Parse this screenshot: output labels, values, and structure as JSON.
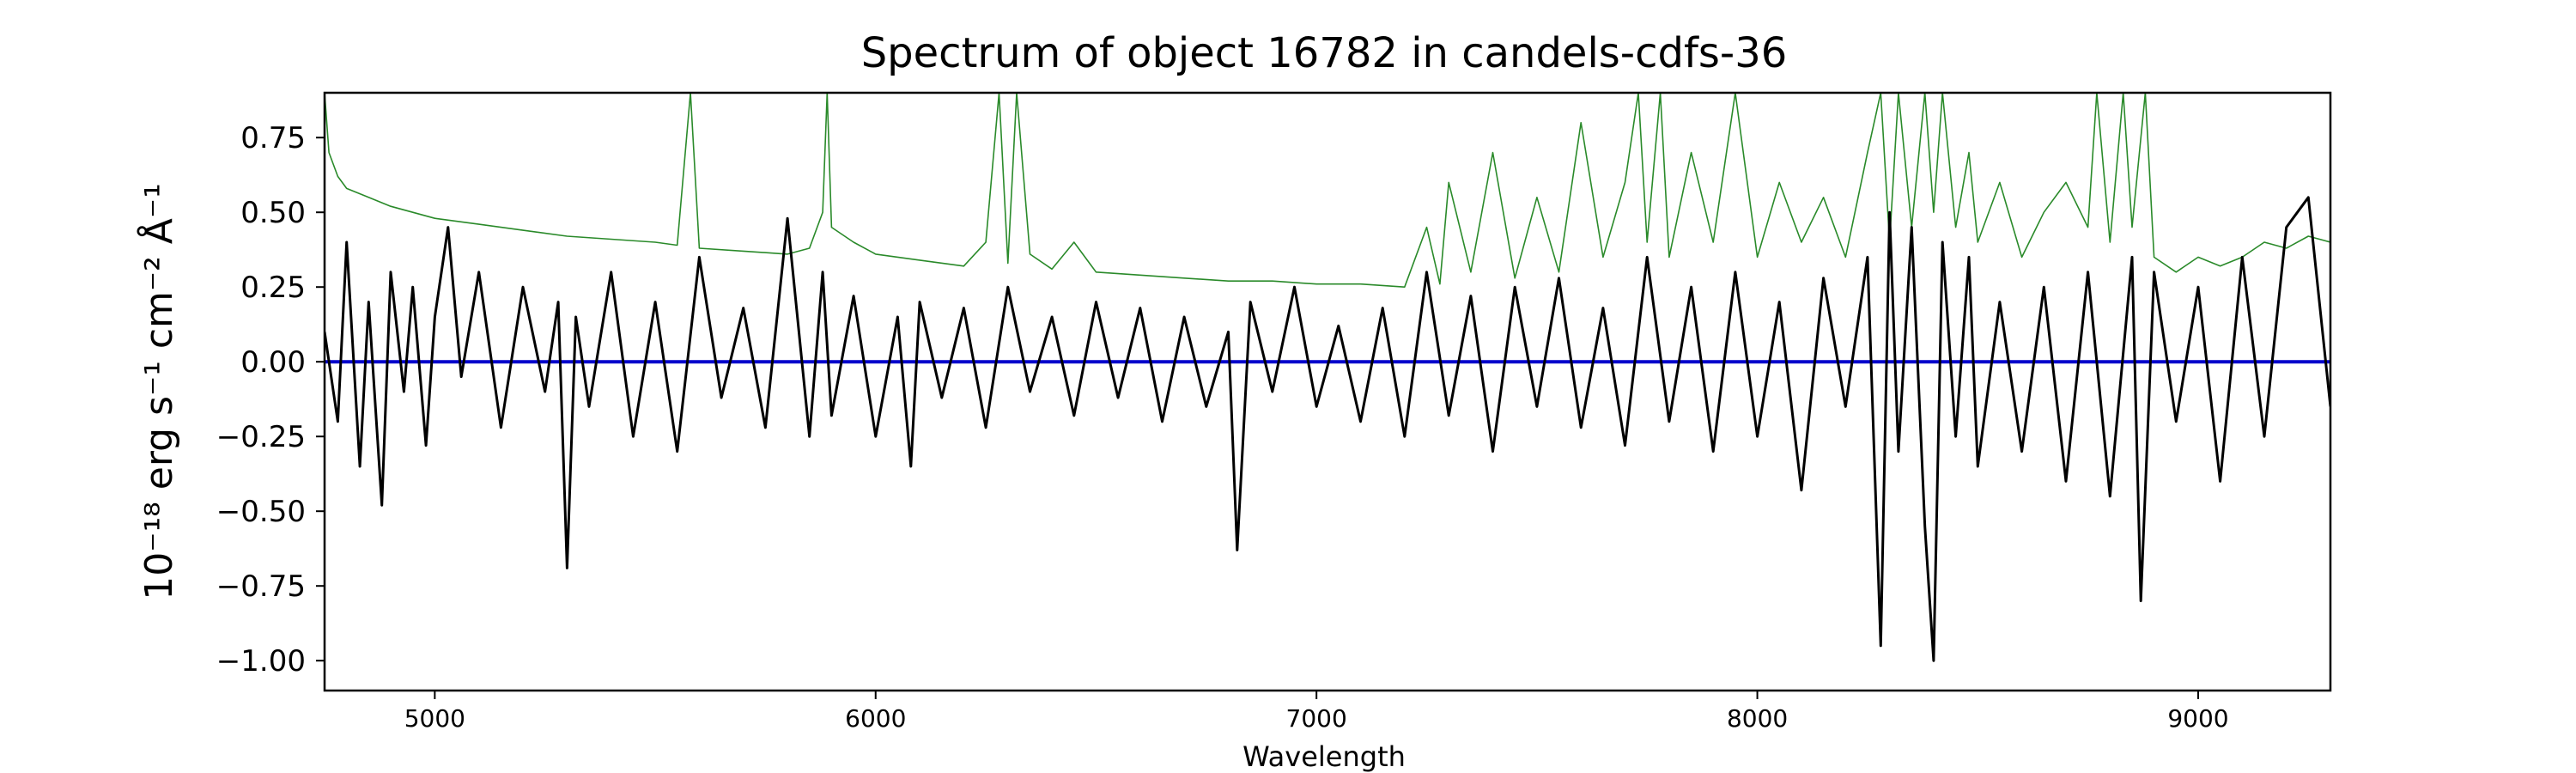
{
  "chart_data": {
    "type": "line",
    "title": "Spectrum of object 16782 in candels-cdfs-36",
    "xlabel": "Wavelength",
    "ylabel": "10⁻¹⁸ erg s⁻¹ cm⁻² Å⁻¹",
    "xlim": [
      4750,
      9300
    ],
    "ylim": [
      -1.1,
      0.9
    ],
    "xticks": [
      5000,
      6000,
      7000,
      8000,
      9000
    ],
    "xtick_labels": [
      "5000",
      "6000",
      "7000",
      "8000",
      "9000"
    ],
    "yticks": [
      -1.0,
      -0.75,
      -0.5,
      -0.25,
      0.0,
      0.25,
      0.5,
      0.75
    ],
    "ytick_labels": [
      "−1.00",
      "−0.75",
      "−0.50",
      "−0.25",
      "0.00",
      "0.25",
      "0.50",
      "0.75"
    ],
    "grid": false,
    "colors": {
      "flux": "#000000",
      "noise": "#2a8a2a",
      "model": "#0000cc"
    },
    "series": [
      {
        "key": "flux",
        "x": [
          4750,
          4780,
          4800,
          4830,
          4850,
          4880,
          4900,
          4930,
          4950,
          4980,
          5000,
          5030,
          5060,
          5100,
          5150,
          5200,
          5250,
          5280,
          5300,
          5320,
          5350,
          5400,
          5450,
          5500,
          5550,
          5600,
          5650,
          5700,
          5750,
          5800,
          5850,
          5880,
          5900,
          5950,
          6000,
          6050,
          6080,
          6100,
          6150,
          6200,
          6250,
          6300,
          6350,
          6400,
          6450,
          6500,
          6550,
          6600,
          6650,
          6700,
          6750,
          6800,
          6820,
          6850,
          6900,
          6950,
          7000,
          7050,
          7100,
          7150,
          7200,
          7250,
          7300,
          7350,
          7400,
          7450,
          7500,
          7550,
          7600,
          7650,
          7700,
          7750,
          7800,
          7850,
          7900,
          7950,
          8000,
          8050,
          8100,
          8150,
          8200,
          8250,
          8280,
          8300,
          8320,
          8350,
          8380,
          8400,
          8420,
          8450,
          8480,
          8500,
          8550,
          8600,
          8650,
          8700,
          8750,
          8800,
          8850,
          8870,
          8900,
          8950,
          9000,
          9050,
          9100,
          9150,
          9200,
          9250,
          9300
        ],
        "y": [
          0.1,
          -0.2,
          0.4,
          -0.35,
          0.2,
          -0.48,
          0.3,
          -0.1,
          0.25,
          -0.28,
          0.15,
          0.45,
          -0.05,
          0.3,
          -0.22,
          0.25,
          -0.1,
          0.2,
          -0.69,
          0.15,
          -0.15,
          0.3,
          -0.25,
          0.2,
          -0.3,
          0.35,
          -0.12,
          0.18,
          -0.22,
          0.48,
          -0.25,
          0.3,
          -0.18,
          0.22,
          -0.25,
          0.15,
          -0.35,
          0.2,
          -0.12,
          0.18,
          -0.22,
          0.25,
          -0.1,
          0.15,
          -0.18,
          0.2,
          -0.12,
          0.18,
          -0.2,
          0.15,
          -0.15,
          0.1,
          -0.63,
          0.2,
          -0.1,
          0.25,
          -0.15,
          0.12,
          -0.2,
          0.18,
          -0.25,
          0.3,
          -0.18,
          0.22,
          -0.3,
          0.25,
          -0.15,
          0.28,
          -0.22,
          0.18,
          -0.28,
          0.35,
          -0.2,
          0.25,
          -0.3,
          0.3,
          -0.25,
          0.2,
          -0.43,
          0.28,
          -0.15,
          0.35,
          -0.95,
          0.5,
          -0.3,
          0.45,
          -0.55,
          -1.0,
          0.4,
          -0.25,
          0.35,
          -0.35,
          0.2,
          -0.3,
          0.25,
          -0.4,
          0.3,
          -0.45,
          0.35,
          -0.8,
          0.3,
          -0.2,
          0.25,
          -0.4,
          0.35,
          -0.25,
          0.45,
          0.55,
          -0.15
        ]
      },
      {
        "key": "noise",
        "x": [
          4750,
          4760,
          4780,
          4800,
          4850,
          4900,
          5000,
          5100,
          5200,
          5300,
          5400,
          5500,
          5550,
          5580,
          5600,
          5700,
          5800,
          5850,
          5880,
          5890,
          5900,
          5950,
          6000,
          6100,
          6200,
          6250,
          6280,
          6300,
          6320,
          6350,
          6400,
          6450,
          6500,
          6600,
          6700,
          6800,
          6900,
          7000,
          7100,
          7200,
          7250,
          7280,
          7300,
          7350,
          7400,
          7450,
          7500,
          7550,
          7600,
          7650,
          7700,
          7730,
          7750,
          7780,
          7800,
          7850,
          7900,
          7950,
          8000,
          8050,
          8100,
          8150,
          8200,
          8250,
          8280,
          8300,
          8320,
          8350,
          8380,
          8400,
          8420,
          8450,
          8480,
          8500,
          8550,
          8600,
          8650,
          8700,
          8750,
          8770,
          8800,
          8830,
          8850,
          8880,
          8900,
          8950,
          9000,
          9050,
          9100,
          9150,
          9200,
          9250,
          9300
        ],
        "y": [
          0.9,
          0.7,
          0.62,
          0.58,
          0.55,
          0.52,
          0.48,
          0.46,
          0.44,
          0.42,
          0.41,
          0.4,
          0.39,
          0.9,
          0.38,
          0.37,
          0.36,
          0.38,
          0.5,
          0.9,
          0.45,
          0.4,
          0.36,
          0.34,
          0.32,
          0.4,
          0.9,
          0.33,
          0.9,
          0.36,
          0.31,
          0.4,
          0.3,
          0.29,
          0.28,
          0.27,
          0.27,
          0.26,
          0.26,
          0.25,
          0.45,
          0.26,
          0.6,
          0.3,
          0.7,
          0.28,
          0.55,
          0.3,
          0.8,
          0.35,
          0.6,
          0.9,
          0.4,
          0.9,
          0.35,
          0.7,
          0.4,
          0.9,
          0.35,
          0.6,
          0.4,
          0.55,
          0.35,
          0.7,
          0.9,
          0.4,
          0.9,
          0.45,
          0.9,
          0.5,
          0.9,
          0.45,
          0.7,
          0.4,
          0.6,
          0.35,
          0.5,
          0.6,
          0.45,
          0.9,
          0.4,
          0.9,
          0.45,
          0.9,
          0.35,
          0.3,
          0.35,
          0.32,
          0.35,
          0.4,
          0.38,
          0.42,
          0.4
        ]
      },
      {
        "key": "model",
        "x": [
          4750,
          9300
        ],
        "y": [
          0.0,
          0.0
        ]
      }
    ]
  }
}
